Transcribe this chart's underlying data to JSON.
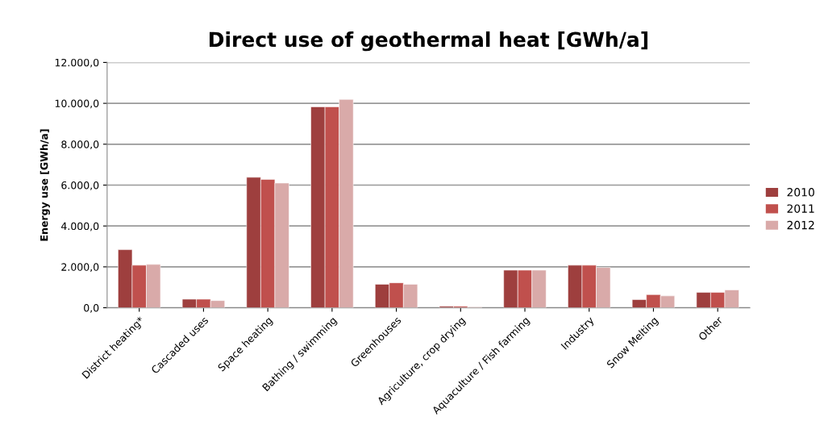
{
  "chart_data": {
    "type": "bar",
    "title": "Direct use of geothermal heat [GWh/a]",
    "ylabel": "Energy use [GWh/a]",
    "categories": [
      "District heating*",
      "Cascaded uses",
      "Space heating",
      "Bathing / swimming",
      "Greenhouses",
      "Agriculture, crop drying",
      "Aquaculture / Fish farming",
      "Industry",
      "Snow Melting",
      "Other"
    ],
    "series": [
      {
        "name": "2010",
        "color": "#9e3f3e",
        "values": [
          2840,
          420,
          6380,
          9830,
          1150,
          70,
          1840,
          2080,
          400,
          750
        ]
      },
      {
        "name": "2011",
        "color": "#c0504d",
        "values": [
          2080,
          420,
          6280,
          9830,
          1220,
          70,
          1840,
          2080,
          640,
          750
        ]
      },
      {
        "name": "2012",
        "color": "#d9aaa9",
        "values": [
          2120,
          350,
          6100,
          10190,
          1150,
          40,
          1840,
          1970,
          580,
          870
        ]
      }
    ],
    "ylim": [
      0,
      12000
    ],
    "yticks": [
      {
        "value": 0,
        "label": "0,0"
      },
      {
        "value": 2000,
        "label": "2.000,0"
      },
      {
        "value": 4000,
        "label": "4.000,0"
      },
      {
        "value": 6000,
        "label": "6.000,0"
      },
      {
        "value": 8000,
        "label": "8.000,0"
      },
      {
        "value": 10000,
        "label": "10.000,0"
      },
      {
        "value": 12000,
        "label": "12.000,0"
      }
    ],
    "grid": "y",
    "legend": "right"
  }
}
